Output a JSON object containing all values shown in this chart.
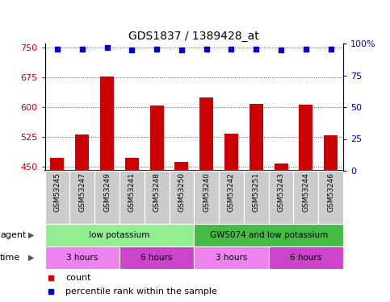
{
  "title": "GDS1837 / 1389428_at",
  "samples": [
    "GSM53245",
    "GSM53247",
    "GSM53249",
    "GSM53241",
    "GSM53248",
    "GSM53250",
    "GSM53240",
    "GSM53242",
    "GSM53251",
    "GSM53243",
    "GSM53244",
    "GSM53246"
  ],
  "bar_values": [
    473,
    532,
    678,
    473,
    605,
    462,
    625,
    533,
    608,
    458,
    607,
    530
  ],
  "blue_dot_values": [
    96,
    96,
    97,
    95,
    96,
    95,
    96,
    96,
    96,
    95,
    96,
    96
  ],
  "bar_color": "#cc0000",
  "dot_color": "#0000cc",
  "ylim_left": [
    440,
    760
  ],
  "ylim_right": [
    0,
    100
  ],
  "yticks_left": [
    450,
    525,
    600,
    675,
    750
  ],
  "yticks_right": [
    0,
    25,
    50,
    75,
    100
  ],
  "ytick_right_labels": [
    "0",
    "25",
    "50",
    "75",
    "100%"
  ],
  "agent_groups": [
    {
      "label": "low potassium",
      "start": 0,
      "end": 6,
      "color": "#90ee90"
    },
    {
      "label": "GW5074 and low potassium",
      "start": 6,
      "end": 12,
      "color": "#44bb44"
    }
  ],
  "time_groups": [
    {
      "label": "3 hours",
      "start": 0,
      "end": 3,
      "color": "#ee82ee"
    },
    {
      "label": "6 hours",
      "start": 3,
      "end": 6,
      "color": "#cc44cc"
    },
    {
      "label": "3 hours",
      "start": 6,
      "end": 9,
      "color": "#ee82ee"
    },
    {
      "label": "6 hours",
      "start": 9,
      "end": 12,
      "color": "#cc44cc"
    }
  ],
  "bar_bottom": 440,
  "sample_box_color": "#cccccc",
  "bg_color": "#ffffff",
  "legend_count_color": "#cc0000",
  "legend_pct_color": "#0000cc"
}
